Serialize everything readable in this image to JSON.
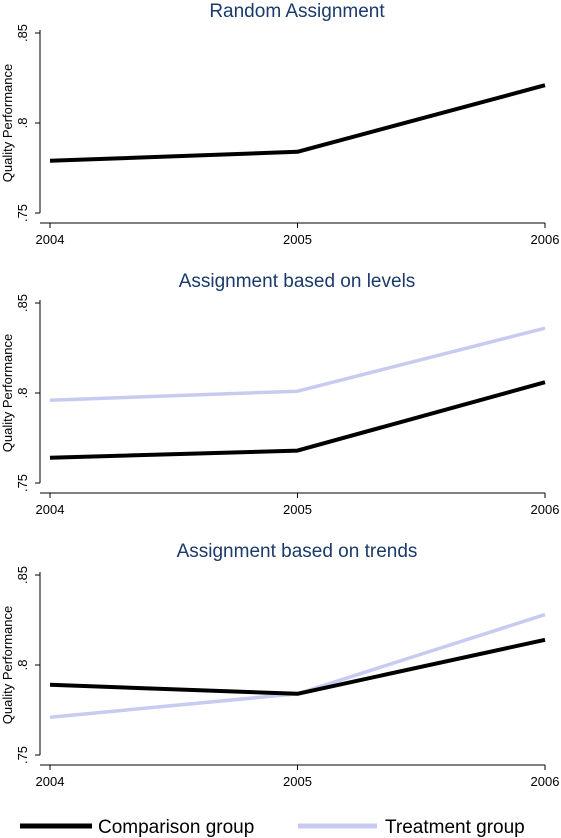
{
  "chart_data": [
    {
      "type": "line",
      "title": "Random Assignment",
      "ylabel": "Quality Performance",
      "x": [
        "2004",
        "2005",
        "2006"
      ],
      "ylim": [
        0.75,
        0.85
      ],
      "yticks": [
        ".75",
        ".8",
        ".85"
      ],
      "series": [
        {
          "name": "Comparison group",
          "color": "#000000",
          "values": [
            0.779,
            0.784,
            0.821
          ]
        }
      ]
    },
    {
      "type": "line",
      "title": "Assignment based on levels",
      "ylabel": "Quality Performance",
      "x": [
        "2004",
        "2005",
        "2006"
      ],
      "ylim": [
        0.75,
        0.85
      ],
      "yticks": [
        ".75",
        ".8",
        ".85"
      ],
      "series": [
        {
          "name": "Comparison group",
          "color": "#000000",
          "values": [
            0.764,
            0.768,
            0.806
          ]
        },
        {
          "name": "Treatment group",
          "color": "#c8cbf0",
          "values": [
            0.796,
            0.801,
            0.836
          ]
        }
      ]
    },
    {
      "type": "line",
      "title": "Assignment based on trends",
      "ylabel": "Quality Performance",
      "x": [
        "2004",
        "2005",
        "2006"
      ],
      "ylim": [
        0.75,
        0.85
      ],
      "yticks": [
        ".75",
        ".8",
        ".85"
      ],
      "series": [
        {
          "name": "Comparison group",
          "color": "#000000",
          "values": [
            0.789,
            0.784,
            0.814
          ]
        },
        {
          "name": "Treatment group",
          "color": "#c8cbf0",
          "values": [
            0.771,
            0.784,
            0.828
          ]
        }
      ]
    }
  ],
  "legend": {
    "placement": "bottom",
    "items": [
      {
        "label": "Comparison group",
        "color": "#000000"
      },
      {
        "label": "Treatment group",
        "color": "#c8cbf0"
      }
    ]
  },
  "colors": {
    "title": "#1a3a6b",
    "axis": "#000000"
  }
}
